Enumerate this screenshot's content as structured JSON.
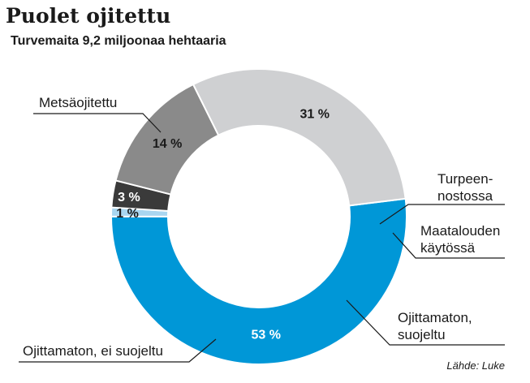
{
  "title": "Puolet ojitettu",
  "subtitle": "Turvemaita 9,2 miljoonaa hehtaaria",
  "source": "Lähde: Luke",
  "chart_data": {
    "type": "pie",
    "title": "Puolet ojitettu",
    "subtitle": "Turvemaita 9,2 miljoonaa hehtaaria",
    "donut": true,
    "legend": "none",
    "slices": [
      {
        "label": "Metsäojitettu",
        "value": 53,
        "value_label": "53 %",
        "color": "#0097d7",
        "text_color": "#ffffff"
      },
      {
        "label": "Turpeen-\nnostossa",
        "value": 1,
        "value_label": "1 %",
        "color": "#a9d6f0",
        "text_color": "#1a1a1a"
      },
      {
        "label": "Maatalouden\nkäytössä",
        "value": 3,
        "value_label": "3 %",
        "color": "#3a3a3a",
        "text_color": "#ffffff"
      },
      {
        "label": "Ojittamaton,\nsuojeltu",
        "value": 14,
        "value_label": "14 %",
        "color": "#8a8a8a",
        "text_color": "#1a1a1a"
      },
      {
        "label": "Ojittamaton, ei suojeltu",
        "value": 31,
        "value_label": "31 %",
        "color": "#cfd0d2",
        "text_color": "#1a1a1a"
      }
    ]
  }
}
